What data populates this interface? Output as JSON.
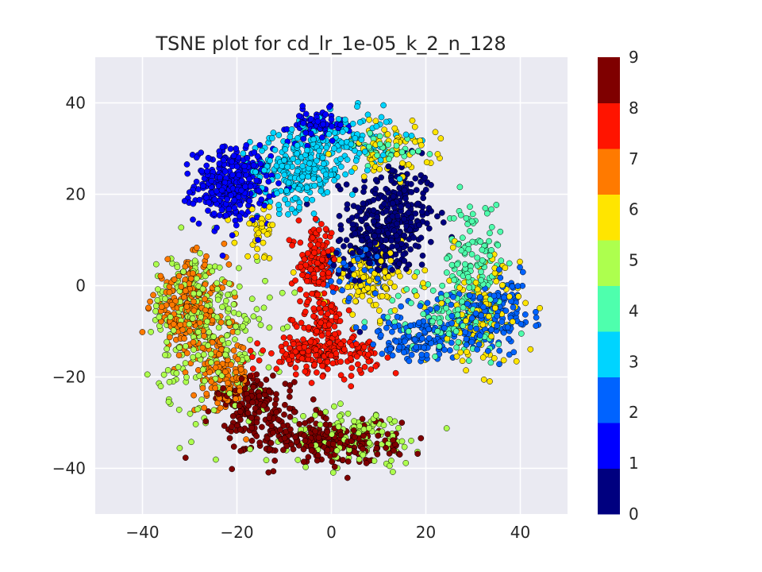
{
  "chart_data": {
    "type": "scatter",
    "title": "TSNE plot for cd_lr_1e-05_k_2_n_128",
    "xlabel": "",
    "ylabel": "",
    "xlim": [
      -50,
      50
    ],
    "ylim": [
      -50,
      50
    ],
    "x_ticks": [
      -40,
      -20,
      0,
      20,
      40
    ],
    "y_ticks": [
      -40,
      -20,
      0,
      20,
      40
    ],
    "x_tick_labels": [
      "−40",
      "−20",
      "0",
      "20",
      "40"
    ],
    "y_tick_labels": [
      "−40",
      "−20",
      "0",
      "20",
      "40"
    ],
    "grid": true,
    "plot_background": "#eaeaf2",
    "colorbar": {
      "labels": [
        "0",
        "1",
        "2",
        "3",
        "4",
        "5",
        "6",
        "7",
        "8",
        "9"
      ],
      "colors": [
        "#00007f",
        "#0000ff",
        "#0063ff",
        "#00d4ff",
        "#4effad",
        "#adff4e",
        "#ffe500",
        "#ff7a00",
        "#ff1400",
        "#7f0000"
      ]
    },
    "series": [
      {
        "label": "0",
        "color": "#00007f",
        "clusters": [
          {
            "cx": 13,
            "cy": 15,
            "sx": 4.5,
            "sy": 6,
            "n": 300
          },
          {
            "cx": 8,
            "cy": 8,
            "sx": 4,
            "sy": 3,
            "n": 110
          }
        ]
      },
      {
        "label": "1",
        "color": "#0000ff",
        "clusters": [
          {
            "cx": -21,
            "cy": 22,
            "sx": 4,
            "sy": 4,
            "n": 340
          },
          {
            "cx": -3,
            "cy": 35,
            "sx": 3,
            "sy": 1.8,
            "n": 70
          }
        ]
      },
      {
        "label": "2",
        "color": "#0063ff",
        "clusters": [
          {
            "cx": 30,
            "cy": -8,
            "sx": 6,
            "sy": 3.5,
            "n": 170
          },
          {
            "cx": 17,
            "cy": -12,
            "sx": 5,
            "sy": 2.5,
            "n": 100
          },
          {
            "cx": 6,
            "cy": 3,
            "sx": 4,
            "sy": 3,
            "n": 60
          },
          {
            "cx": 37,
            "cy": -3,
            "sx": 2.5,
            "sy": 3,
            "n": 60
          }
        ]
      },
      {
        "label": "3",
        "color": "#00d4ff",
        "clusters": [
          {
            "cx": -7,
            "cy": 25,
            "sx": 5,
            "sy": 4,
            "n": 230
          },
          {
            "cx": 2,
            "cy": 32,
            "sx": 6,
            "sy": 3,
            "n": 130
          }
        ]
      },
      {
        "label": "4",
        "color": "#4effad",
        "clusters": [
          {
            "cx": 30,
            "cy": 5,
            "sx": 3,
            "sy": 7,
            "n": 130
          },
          {
            "cx": 25,
            "cy": -7,
            "sx": 6,
            "sy": 4,
            "n": 110
          },
          {
            "cx": 12,
            "cy": 30,
            "sx": 4,
            "sy": 2,
            "n": 40
          }
        ]
      },
      {
        "label": "5",
        "color": "#adff4e",
        "clusters": [
          {
            "cx": -25,
            "cy": -12,
            "sx": 6,
            "sy": 9,
            "n": 220
          },
          {
            "cx": 5,
            "cy": -33,
            "sx": 7,
            "sy": 3,
            "n": 140
          },
          {
            "cx": -30,
            "cy": -2,
            "sx": 4,
            "sy": 5,
            "n": 90
          }
        ]
      },
      {
        "label": "6",
        "color": "#ffe500",
        "clusters": [
          {
            "cx": 8,
            "cy": 1,
            "sx": 5,
            "sy": 4,
            "n": 120
          },
          {
            "cx": 32,
            "cy": -6,
            "sx": 4,
            "sy": 6,
            "n": 120
          },
          {
            "cx": 12,
            "cy": 30,
            "sx": 5,
            "sy": 3,
            "n": 70
          },
          {
            "cx": -15,
            "cy": 12,
            "sx": 2.5,
            "sy": 3,
            "n": 40
          }
        ]
      },
      {
        "label": "7",
        "color": "#ff7a00",
        "clusters": [
          {
            "cx": -30,
            "cy": -5,
            "sx": 4,
            "sy": 5,
            "n": 230
          },
          {
            "cx": -23,
            "cy": -20,
            "sx": 3,
            "sy": 4,
            "n": 120
          }
        ]
      },
      {
        "label": "8",
        "color": "#ff1400",
        "clusters": [
          {
            "cx": -3,
            "cy": 5,
            "sx": 2,
            "sy": 4,
            "n": 130
          },
          {
            "cx": -2,
            "cy": -8,
            "sx": 2.5,
            "sy": 3,
            "n": 90
          },
          {
            "cx": -2,
            "cy": -15,
            "sx": 6,
            "sy": 2,
            "n": 190
          }
        ]
      },
      {
        "label": "9",
        "color": "#7f0000",
        "clusters": [
          {
            "cx": -2,
            "cy": -34,
            "sx": 8,
            "sy": 2.5,
            "n": 260
          },
          {
            "cx": -16,
            "cy": -26,
            "sx": 4,
            "sy": 3,
            "n": 170
          }
        ]
      }
    ]
  }
}
